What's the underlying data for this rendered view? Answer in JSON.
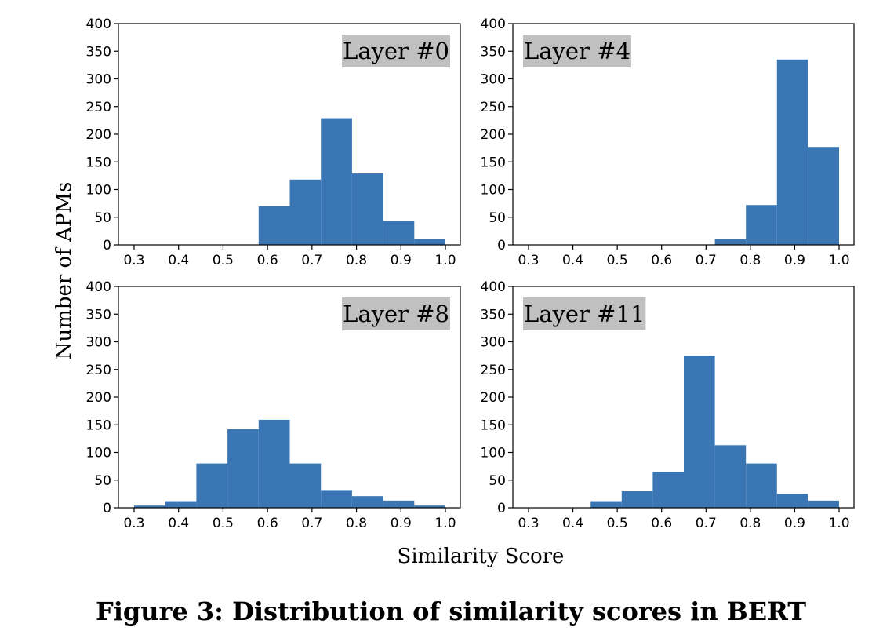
{
  "figure": {
    "ylabel": "Number of APMs",
    "xlabel": "Similarity Score",
    "caption": "Figure 3: Distribution of similarity scores in BERT"
  },
  "chart_data": [
    {
      "type": "bar",
      "title": "Layer #0",
      "xlim": [
        0.3,
        1.0
      ],
      "ylim": [
        0,
        400
      ],
      "xticks": [
        "0.3",
        "0.4",
        "0.5",
        "0.6",
        "0.7",
        "0.8",
        "0.9",
        "1.0"
      ],
      "yticks": [
        "0",
        "50",
        "100",
        "150",
        "200",
        "250",
        "300",
        "350",
        "400"
      ],
      "bins": [
        [
          0.58,
          0.65
        ],
        [
          0.65,
          0.72
        ],
        [
          0.72,
          0.79
        ],
        [
          0.79,
          0.86
        ],
        [
          0.86,
          0.93
        ],
        [
          0.93,
          1.0
        ]
      ],
      "values": [
        70,
        118,
        229,
        129,
        43,
        11
      ]
    },
    {
      "type": "bar",
      "title": "Layer #4",
      "xlim": [
        0.3,
        1.0
      ],
      "ylim": [
        0,
        400
      ],
      "xticks": [
        "0.3",
        "0.4",
        "0.5",
        "0.6",
        "0.7",
        "0.8",
        "0.9",
        "1.0"
      ],
      "yticks": [
        "0",
        "50",
        "100",
        "150",
        "200",
        "250",
        "300",
        "350",
        "400"
      ],
      "bins": [
        [
          0.72,
          0.79
        ],
        [
          0.79,
          0.86
        ],
        [
          0.86,
          0.93
        ],
        [
          0.93,
          1.0
        ]
      ],
      "values": [
        10,
        72,
        335,
        177
      ]
    },
    {
      "type": "bar",
      "title": "Layer #8",
      "xlim": [
        0.3,
        1.0
      ],
      "ylim": [
        0,
        400
      ],
      "xticks": [
        "0.3",
        "0.4",
        "0.5",
        "0.6",
        "0.7",
        "0.8",
        "0.9",
        "1.0"
      ],
      "yticks": [
        "0",
        "50",
        "100",
        "150",
        "200",
        "250",
        "300",
        "350",
        "400"
      ],
      "bins": [
        [
          0.3,
          0.37
        ],
        [
          0.37,
          0.44
        ],
        [
          0.44,
          0.51
        ],
        [
          0.51,
          0.58
        ],
        [
          0.58,
          0.65
        ],
        [
          0.65,
          0.72
        ],
        [
          0.72,
          0.79
        ],
        [
          0.79,
          0.86
        ],
        [
          0.86,
          0.93
        ],
        [
          0.93,
          1.0
        ]
      ],
      "values": [
        4,
        12,
        80,
        142,
        159,
        80,
        32,
        21,
        13,
        4
      ]
    },
    {
      "type": "bar",
      "title": "Layer #11",
      "xlim": [
        0.3,
        1.0
      ],
      "ylim": [
        0,
        400
      ],
      "xticks": [
        "0.3",
        "0.4",
        "0.5",
        "0.6",
        "0.7",
        "0.8",
        "0.9",
        "1.0"
      ],
      "yticks": [
        "0",
        "50",
        "100",
        "150",
        "200",
        "250",
        "300",
        "350",
        "400"
      ],
      "bins": [
        [
          0.44,
          0.51
        ],
        [
          0.51,
          0.58
        ],
        [
          0.58,
          0.65
        ],
        [
          0.65,
          0.72
        ],
        [
          0.72,
          0.79
        ],
        [
          0.79,
          0.86
        ],
        [
          0.86,
          0.93
        ],
        [
          0.93,
          1.0
        ]
      ],
      "values": [
        12,
        30,
        65,
        275,
        113,
        80,
        25,
        13
      ]
    }
  ]
}
